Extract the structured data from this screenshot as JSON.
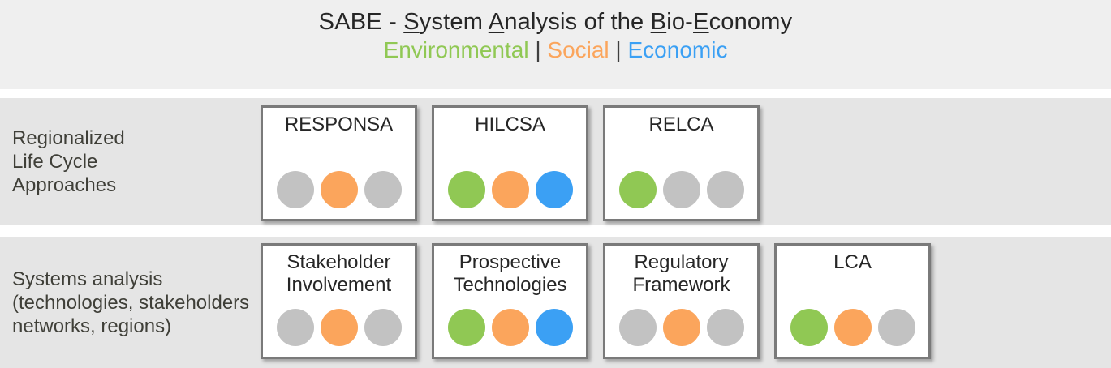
{
  "header": {
    "title_segments": [
      {
        "text": "SABE - "
      },
      {
        "text": "S",
        "underline": true
      },
      {
        "text": "ystem "
      },
      {
        "text": "A",
        "underline": true
      },
      {
        "text": "nalysis of the "
      },
      {
        "text": "B",
        "underline": true
      },
      {
        "text": "io-"
      },
      {
        "text": "E",
        "underline": true
      },
      {
        "text": "conomy"
      }
    ],
    "subtitle_segments": [
      {
        "text": "Environmental",
        "color_key": "environmental"
      },
      {
        "text": " | ",
        "color_key": "separator"
      },
      {
        "text": "Social",
        "color_key": "social"
      },
      {
        "text": " | ",
        "color_key": "separator"
      },
      {
        "text": "Economic",
        "color_key": "economic"
      }
    ]
  },
  "colors": {
    "environmental": "#90C854",
    "social": "#FBA55C",
    "economic": "#3BA0F4",
    "separator": "#3F3F3F",
    "inactive": "#C2C2C2",
    "header_background": "#EFEFEF",
    "band_background": "#E5E5E5",
    "box_border": "#7A7A7A"
  },
  "rows": [
    {
      "id": "regionalized-life-cycle-approaches",
      "label_lines": [
        "Regionalized",
        "Life Cycle",
        "Approaches"
      ],
      "boxes": [
        {
          "id": "responsa",
          "label_lines": [
            "RESPONSA"
          ],
          "dots": [
            "inactive",
            "social",
            "inactive"
          ]
        },
        {
          "id": "hilcsa",
          "label_lines": [
            "HILCSA"
          ],
          "dots": [
            "environmental",
            "social",
            "economic"
          ]
        },
        {
          "id": "relca",
          "label_lines": [
            "RELCA"
          ],
          "dots": [
            "environmental",
            "inactive",
            "inactive"
          ]
        }
      ]
    },
    {
      "id": "systems-analysis",
      "label_lines": [
        "Systems analysis",
        "(technologies, stakeholders",
        "networks, regions)"
      ],
      "boxes": [
        {
          "id": "stakeholder-involvement",
          "label_lines": [
            "Stakeholder",
            "Involvement"
          ],
          "dots": [
            "inactive",
            "social",
            "inactive"
          ]
        },
        {
          "id": "prospective-technologies",
          "label_lines": [
            "Prospective",
            "Technologies"
          ],
          "dots": [
            "environmental",
            "social",
            "economic"
          ]
        },
        {
          "id": "regulatory-framework",
          "label_lines": [
            "Regulatory",
            "Framework"
          ],
          "dots": [
            "inactive",
            "social",
            "inactive"
          ]
        },
        {
          "id": "lca",
          "label_lines": [
            "LCA"
          ],
          "dots": [
            "environmental",
            "social",
            "inactive"
          ]
        }
      ]
    }
  ],
  "dot_positions": [
    "environmental",
    "social",
    "economic"
  ]
}
